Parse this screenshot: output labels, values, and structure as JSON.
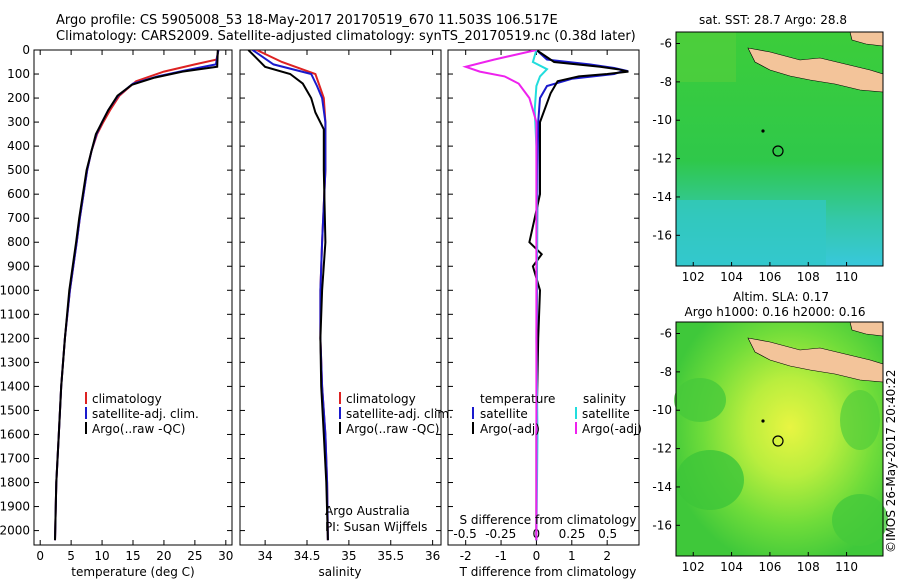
{
  "header": {
    "line1": "Argo profile: CS 5905008_53 18-May-2017 20170519_670 11.503S 106.517E",
    "line2": "Climatology: CARS2009. Satellite-adjusted climatology: synTS_20170519.nc (0.38d later)"
  },
  "watermark": "©IMOS 26-May-2017 20:40:22",
  "colors": {
    "climatology": "#dd2222",
    "satellite": "#1a1acc",
    "argo": "#000000",
    "sat_salinity": "#22dddd",
    "argo_salinity_adj": "#ee22ee",
    "land": "#f3c49a"
  },
  "chart_data": [
    {
      "type": "line",
      "id": "temperature",
      "xlabel": "temperature (deg C)",
      "xlim": [
        -1,
        31
      ],
      "ylim": [
        2060,
        0
      ],
      "xticks": [
        "0",
        "5",
        "10",
        "15",
        "20",
        "25",
        "30"
      ],
      "xtick_values": [
        0,
        5,
        10,
        15,
        20,
        25,
        30
      ],
      "yticks": [
        "0",
        "100",
        "200",
        "300",
        "400",
        "500",
        "600",
        "700",
        "800",
        "900",
        "1000",
        "1100",
        "1200",
        "1300",
        "1400",
        "1500",
        "1600",
        "1700",
        "1800",
        "1900",
        "2000"
      ],
      "ytick_values": [
        0,
        100,
        200,
        300,
        400,
        500,
        600,
        700,
        800,
        900,
        1000,
        1100,
        1200,
        1300,
        1400,
        1500,
        1600,
        1700,
        1800,
        1900,
        2000
      ],
      "legend": [
        "climatology",
        "satellite-adj. clim.",
        "Argo(..raw -QC)"
      ],
      "series": [
        {
          "name": "climatology",
          "color": "#dd2222",
          "x": [
            28.8,
            28.5,
            25.0,
            20.0,
            15.5,
            12.8,
            11.3,
            10.2,
            9.2,
            8.3,
            7.6,
            7.0,
            6.4,
            5.9,
            4.8,
            4.0,
            3.4,
            3.0,
            2.6,
            2.4
          ],
          "y": [
            0,
            40,
            60,
            90,
            130,
            190,
            250,
            300,
            350,
            420,
            500,
            600,
            700,
            800,
            1000,
            1200,
            1400,
            1600,
            1800,
            2040
          ]
        },
        {
          "name": "satellite-adj. clim.",
          "color": "#1a1acc",
          "x": [
            28.8,
            28.4,
            23.5,
            19.0,
            15.0,
            12.6,
            11.0,
            10.0,
            9.1,
            8.3,
            7.6,
            7.0,
            6.4,
            5.9,
            4.8,
            4.0,
            3.4,
            3.0,
            2.6,
            2.4
          ],
          "y": [
            0,
            60,
            85,
            110,
            140,
            190,
            250,
            300,
            350,
            420,
            500,
            600,
            700,
            800,
            1000,
            1200,
            1400,
            1600,
            1800,
            2040
          ]
        },
        {
          "name": "Argo(..raw -QC)",
          "color": "#000000",
          "x": [
            28.7,
            28.6,
            23.0,
            18.5,
            14.8,
            12.5,
            11.0,
            10.0,
            9.0,
            8.3,
            7.5,
            6.9,
            6.3,
            5.8,
            4.7,
            4.0,
            3.4,
            3.0,
            2.6,
            2.4
          ],
          "y": [
            0,
            70,
            90,
            115,
            145,
            190,
            250,
            300,
            350,
            420,
            500,
            600,
            700,
            800,
            1000,
            1200,
            1400,
            1600,
            1800,
            2040
          ]
        }
      ]
    },
    {
      "type": "line",
      "id": "salinity",
      "xlabel": "salinity",
      "xlim": [
        33.7,
        36.1
      ],
      "ylim": [
        2060,
        0
      ],
      "xticks": [
        "34",
        "34.5",
        "35",
        "35.5",
        "36"
      ],
      "xtick_values": [
        34,
        34.5,
        35,
        35.5,
        36
      ],
      "legend": [
        "climatology",
        "satellite-adj. clim.",
        "Argo(..raw -QC)"
      ],
      "annotation": [
        "Argo Australia",
        "PI: Susan Wijffels"
      ],
      "series": [
        {
          "name": "climatology",
          "color": "#dd2222",
          "x": [
            33.9,
            34.2,
            34.6,
            34.65,
            34.7,
            34.72,
            34.72,
            34.68,
            34.66,
            34.66,
            34.68,
            34.72,
            34.74,
            34.75
          ],
          "y": [
            0,
            50,
            100,
            150,
            200,
            300,
            500,
            800,
            1000,
            1200,
            1400,
            1600,
            1800,
            2040
          ]
        },
        {
          "name": "satellite-adj. clim.",
          "color": "#1a1acc",
          "x": [
            33.85,
            34.1,
            34.55,
            34.62,
            34.68,
            34.72,
            34.72,
            34.68,
            34.66,
            34.66,
            34.68,
            34.72,
            34.74,
            34.75
          ],
          "y": [
            0,
            60,
            100,
            150,
            200,
            300,
            500,
            800,
            1000,
            1200,
            1400,
            1600,
            1800,
            2040
          ]
        },
        {
          "name": "Argo(..raw -QC)",
          "color": "#000000",
          "x": [
            33.8,
            34.0,
            34.3,
            34.45,
            34.55,
            34.6,
            34.7,
            34.7,
            34.72,
            34.68,
            34.66,
            34.67,
            34.7,
            34.73,
            34.75
          ],
          "y": [
            0,
            70,
            100,
            140,
            200,
            260,
            330,
            500,
            800,
            1000,
            1200,
            1400,
            1600,
            1800,
            2040
          ]
        }
      ]
    },
    {
      "type": "line",
      "id": "difference",
      "xlabel_top": "S difference from climatology",
      "xlabel": "T difference from climatology",
      "xlim": [
        -2.5,
        2.9
      ],
      "ylim": [
        2060,
        0
      ],
      "xticks": [
        "-2",
        "-1",
        "0",
        "1",
        "2"
      ],
      "xtick_values": [
        -2,
        -1,
        0,
        1,
        2
      ],
      "xticks_top": [
        "-0.5",
        "-0.25",
        "0",
        "0.25",
        "0.5"
      ],
      "xtick_top_values": [
        -0.5,
        -0.25,
        0,
        0.25,
        0.5
      ],
      "legend_left_title": "temperature",
      "legend_right_title": "salinity",
      "legend": [
        "satellite",
        "Argo(-adj)",
        "satellite",
        "Argo(-adj)"
      ],
      "series": [
        {
          "name": "satellite",
          "color": "#1a1acc",
          "x": [
            0,
            0.3,
            1.5,
            2.2,
            2.5,
            2.2,
            1.0,
            0.3,
            0.1,
            0.05,
            0.03,
            0.02,
            0.01,
            0
          ],
          "y": [
            0,
            40,
            60,
            75,
            85,
            100,
            120,
            150,
            200,
            300,
            500,
            800,
            1200,
            2040
          ]
        },
        {
          "name": "Argo(-adj)",
          "color": "#000000",
          "x": [
            0,
            0.5,
            1.8,
            2.3,
            2.6,
            2.0,
            1.2,
            0.6,
            0.4,
            0.1,
            0.1,
            -0.2,
            0.15,
            -0.1,
            0.1,
            0.05,
            0.0,
            0
          ],
          "y": [
            0,
            50,
            70,
            80,
            90,
            100,
            110,
            130,
            180,
            300,
            600,
            800,
            850,
            900,
            1000,
            1200,
            1600,
            2040
          ]
        },
        {
          "name": "satellite (salinity)",
          "color": "#22dddd",
          "x": [
            0,
            -0.1,
            0.3,
            0.1,
            0.0,
            -0.05,
            0,
            0.02,
            0,
            0.03,
            0
          ],
          "y": [
            0,
            50,
            80,
            110,
            150,
            250,
            400,
            800,
            1200,
            1600,
            2040
          ]
        },
        {
          "name": "Argo(-adj) (salinity)",
          "color": "#ee22ee",
          "x": [
            0,
            -1.2,
            -2.0,
            -1.6,
            -0.9,
            -0.5,
            -0.2,
            0,
            0
          ],
          "y": [
            0,
            40,
            70,
            90,
            110,
            140,
            200,
            300,
            2040
          ]
        }
      ]
    },
    {
      "type": "heatmap",
      "id": "sst_map",
      "title": "sat. SST: 28.7 Argo: 28.8",
      "xticks": [
        "102",
        "104",
        "106",
        "108",
        "110"
      ],
      "xtick_values": [
        102,
        104,
        106,
        108,
        110
      ],
      "yticks": [
        "-6",
        "-8",
        "-10",
        "-12",
        "-14",
        "-16"
      ],
      "ytick_values": [
        -6,
        -8,
        -10,
        -12,
        -14,
        -16
      ],
      "xlim": [
        101.1,
        111.9
      ],
      "ylim": [
        -17.6,
        -5.4
      ],
      "argo_location": [
        106.517,
        -11.503
      ]
    },
    {
      "type": "heatmap",
      "id": "sla_map",
      "title": "Altim. SLA: 0.17",
      "subtitle": "Argo h1000: 0.16 h2000: 0.16",
      "xticks": [
        "102",
        "104",
        "106",
        "108",
        "110"
      ],
      "xtick_values": [
        102,
        104,
        106,
        108,
        110
      ],
      "yticks": [
        "-6",
        "-8",
        "-10",
        "-12",
        "-14",
        "-16"
      ],
      "ytick_values": [
        -6,
        -8,
        -10,
        -12,
        -14,
        -16
      ],
      "xlim": [
        101.1,
        111.9
      ],
      "ylim": [
        -17.6,
        -5.4
      ],
      "argo_location": [
        106.517,
        -11.503
      ]
    }
  ]
}
